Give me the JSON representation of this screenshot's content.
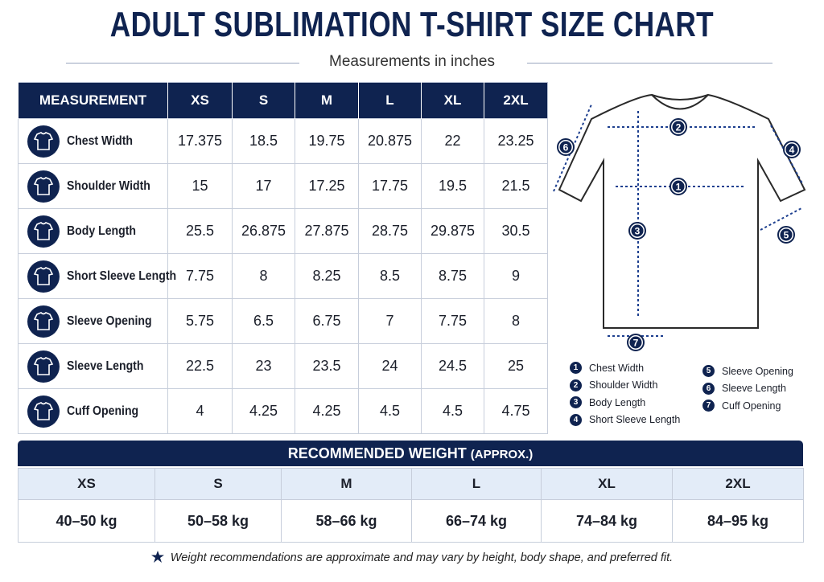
{
  "header": {
    "title": "ADULT SUBLIMATION T-SHIRT SIZE CHART",
    "subtitle": "Measurements in inches"
  },
  "size_table": {
    "columns": [
      "MEASUREMENT",
      "XS",
      "S",
      "M",
      "L",
      "XL",
      "2XL"
    ],
    "rows": [
      {
        "measurement": "Chest Width",
        "values": [
          "17.375",
          "18.5",
          "19.75",
          "20.875",
          "22",
          "23.25"
        ]
      },
      {
        "measurement": "Shoulder Width",
        "values": [
          "15",
          "17",
          "17.25",
          "17.75",
          "19.5",
          "21.5"
        ]
      },
      {
        "measurement": "Body Length",
        "values": [
          "25.5",
          "26.875",
          "27.875",
          "28.75",
          "29.875",
          "30.5"
        ]
      },
      {
        "measurement": "Short Sleeve Length",
        "values": [
          "7.75",
          "8",
          "8.25",
          "8.5",
          "8.75",
          "9"
        ]
      },
      {
        "measurement": "Sleeve Opening",
        "values": [
          "5.75",
          "6.5",
          "6.75",
          "7",
          "7.75",
          "8"
        ]
      },
      {
        "measurement": "Sleeve Length",
        "values": [
          "22.5",
          "23",
          "23.5",
          "24",
          "24.5",
          "25"
        ]
      },
      {
        "measurement": "Cuff Opening",
        "values": [
          "4",
          "4.25",
          "4.25",
          "4.5",
          "4.5",
          "4.75"
        ]
      }
    ]
  },
  "legend": {
    "items": [
      {
        "number": "1",
        "label": "Chest Width"
      },
      {
        "number": "2",
        "label": "Shoulder Width"
      },
      {
        "number": "3",
        "label": "Body Length"
      },
      {
        "number": "4",
        "label": "Short Sleeve Length"
      },
      {
        "number": "5",
        "label": "Sleeve Opening"
      },
      {
        "number": "6",
        "label": "Sleeve Length"
      },
      {
        "number": "7",
        "label": "Cuff Opening"
      }
    ]
  },
  "weight_table": {
    "title": "RECOMMENDED WEIGHT",
    "title_note": "(APPROX.)",
    "columns": [
      "XS",
      "S",
      "M",
      "L",
      "XL",
      "2XL"
    ],
    "values": [
      "40–50 kg",
      "50–58 kg",
      "58–66 kg",
      "66–74 kg",
      "74–84 kg",
      "84–95 kg"
    ]
  },
  "footnote": "Weight recommendations are approximate and may vary by height, body shape, and preferred fit."
}
